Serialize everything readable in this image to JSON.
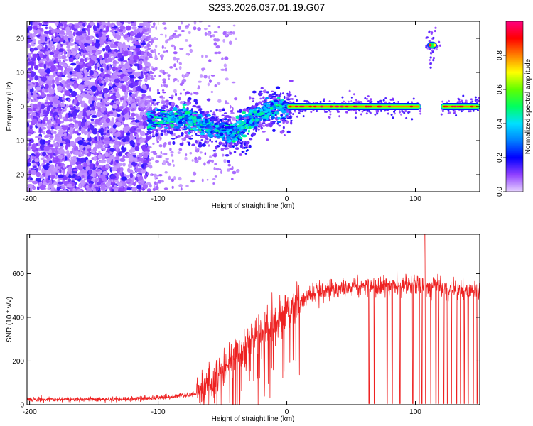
{
  "title": "S233.2026.037.01.19.G07",
  "chart_data": [
    {
      "type": "heatmap",
      "xlabel": "Height of straight line (km)",
      "ylabel": "Frequency (Hz)",
      "xlim": [
        -202,
        150
      ],
      "ylim": [
        -25,
        25
      ],
      "xticks": [
        -200,
        -100,
        0,
        100
      ],
      "yticks": [
        -20,
        -10,
        0,
        10,
        20
      ],
      "colorbar": {
        "label": "Normalized spectral amplitude",
        "range": [
          0,
          1
        ],
        "ticks": [
          0.0,
          0.2,
          0.4,
          0.6,
          0.8
        ]
      },
      "ridge": {
        "description_points_km_hz": [
          [
            -108,
            -4
          ],
          [
            -80,
            -3
          ],
          [
            -60,
            -6
          ],
          [
            -40,
            -8
          ],
          [
            -30,
            -4
          ],
          [
            -15,
            -1
          ],
          [
            0,
            0
          ],
          [
            105,
            0
          ]
        ],
        "steady_segments_km": [
          [
            0,
            104
          ],
          [
            120,
            150
          ]
        ],
        "steady_frequency_hz": 0,
        "isolated_blob": {
          "x": 113,
          "y": 18
        }
      }
    },
    {
      "type": "line",
      "xlabel": "Height of straight line (km)",
      "ylabel": "SNR (10 * v/v)",
      "xlim": [
        -202,
        150
      ],
      "ylim": [
        0,
        780
      ],
      "xticks": [
        -200,
        -100,
        0,
        100
      ],
      "yticks": [
        0,
        200,
        400,
        600
      ],
      "series": [
        {
          "name": "SNR",
          "color": "#ee2222",
          "envelope_points": [
            [
              -202,
              25
            ],
            [
              -120,
              25
            ],
            [
              -90,
              35
            ],
            [
              -70,
              50
            ],
            [
              -60,
              90
            ],
            [
              -50,
              150
            ],
            [
              -40,
              220
            ],
            [
              -30,
              280
            ],
            [
              -20,
              330
            ],
            [
              -10,
              380
            ],
            [
              0,
              420
            ],
            [
              10,
              460
            ],
            [
              20,
              500
            ],
            [
              30,
              520
            ],
            [
              50,
              540
            ],
            [
              70,
              545
            ],
            [
              90,
              545
            ],
            [
              100,
              550
            ],
            [
              110,
              540
            ],
            [
              130,
              530
            ],
            [
              150,
              520
            ]
          ],
          "peak": {
            "x": 107,
            "y": 780
          },
          "dropouts_km": [
            64,
            68,
            78,
            82,
            88,
            98,
            103,
            105,
            108,
            112,
            116,
            118,
            122,
            125,
            128,
            132,
            135,
            138,
            141,
            145,
            148
          ]
        }
      ]
    }
  ]
}
